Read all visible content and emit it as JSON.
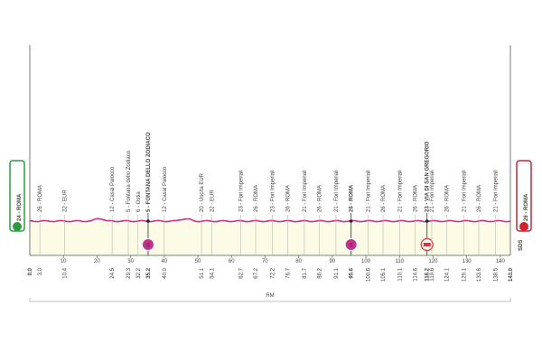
{
  "start": {
    "label": "24 - ROMA",
    "km": "0.0"
  },
  "finish": {
    "label": "26 - ROMA",
    "km": "143.0",
    "note": "SDS"
  },
  "waypoints": [
    {
      "km": "3.0",
      "label": "26 - ROMA"
    },
    {
      "km": "10.4",
      "label": "22 - EUR"
    },
    {
      "km": "24.5",
      "label": "12 - Casal Palocco"
    },
    {
      "km": "29.3",
      "label": "5 - Fontana dello Zodiaco"
    },
    {
      "km": "32.2",
      "label": "6 - Ostia"
    },
    {
      "km": "35.2",
      "label": "5 - FONTANA DELLO ZODIACO",
      "highlight": true,
      "icon": "S"
    },
    {
      "km": "40.0",
      "label": "12 - Casal Palocco"
    },
    {
      "km": "51.1",
      "label": "20 - Uscita EUR"
    },
    {
      "km": "54.1",
      "label": "22 - EUR"
    },
    {
      "km": "62.7",
      "label": "23 - Fori Imperiali"
    },
    {
      "km": "67.2",
      "label": "26 - ROMA"
    },
    {
      "km": "72.2",
      "label": "23 - Fori Imperiali"
    },
    {
      "km": "76.7",
      "label": "26 - ROMA"
    },
    {
      "km": "81.7",
      "label": "21 - Fori Imperiali"
    },
    {
      "km": "86.2",
      "label": "26 - ROMA"
    },
    {
      "km": "91.1",
      "label": "21 - Fori Imperiali"
    },
    {
      "km": "95.6",
      "label": "26 - ROMA",
      "highlight": true,
      "icon": "S"
    },
    {
      "km": "100.6",
      "label": "21 - Fori Imperiali"
    },
    {
      "km": "105.1",
      "label": "26 - ROMA"
    },
    {
      "km": "110.1",
      "label": "21 - Fori Imperiali"
    },
    {
      "km": "114.6",
      "label": "26 - ROMA"
    },
    {
      "km": "118.2",
      "label": "23 - VIA DI SAN GREGORIO",
      "highlight": true,
      "badge": true
    },
    {
      "km": "119.6",
      "label": "21 - Fori Imperiali"
    },
    {
      "km": "124.1",
      "label": "26 - ROMA"
    },
    {
      "km": "129.1",
      "label": "21 - Fori Imperiali"
    },
    {
      "km": "133.6",
      "label": "26 - ROMA"
    },
    {
      "km": "138.5",
      "label": "21 - Fori Imperiali"
    }
  ],
  "km_ticks": [
    10,
    20,
    30,
    40,
    50,
    60,
    70,
    80,
    90,
    100,
    110,
    120,
    130,
    140
  ],
  "province": "RM"
}
